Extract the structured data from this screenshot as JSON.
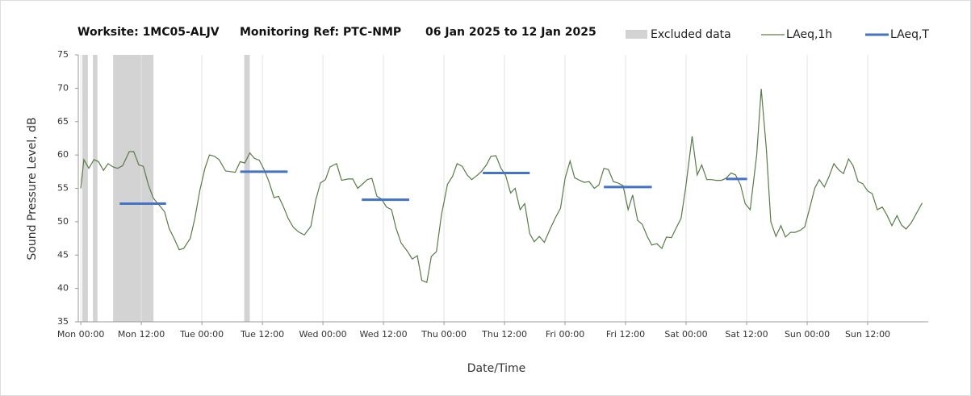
{
  "chart_data": {
    "type": "line",
    "title": [
      "Worksite: 1MC05-ALJV",
      "Monitoring Ref: PTC-NMP",
      "06 Jan 2025 to 12 Jan 2025"
    ],
    "x_label": "Date/Time",
    "y_label": "Sound Pressure Level, dB",
    "xlim": [
      -0.5,
      168
    ],
    "ylim": [
      35,
      75
    ],
    "yticks": [
      35,
      40,
      45,
      50,
      55,
      60,
      65,
      70,
      75
    ],
    "xticks": [
      {
        "value": 0,
        "label": "Mon 00:00"
      },
      {
        "value": 12,
        "label": "Mon 12:00"
      },
      {
        "value": 24,
        "label": "Tue 00:00"
      },
      {
        "value": 36,
        "label": "Tue 12:00"
      },
      {
        "value": 48,
        "label": "Wed 00:00"
      },
      {
        "value": 60,
        "label": "Wed 12:00"
      },
      {
        "value": 72,
        "label": "Thu 00:00"
      },
      {
        "value": 84,
        "label": "Thu 12:00"
      },
      {
        "value": 96,
        "label": "Fri 00:00"
      },
      {
        "value": 108,
        "label": "Fri 12:00"
      },
      {
        "value": 120,
        "label": "Sat 00:00"
      },
      {
        "value": 132,
        "label": "Sat 12:00"
      },
      {
        "value": 144,
        "label": "Sun 00:00"
      },
      {
        "value": 156,
        "label": "Sun 12:00"
      }
    ],
    "grid": "x",
    "excluded": {
      "name": "Excluded data",
      "color": "#d3d3d3",
      "spans": [
        [
          0.3,
          1.4
        ],
        [
          2.4,
          3.3
        ],
        [
          6.4,
          14.4
        ],
        [
          32.4,
          33.5
        ]
      ]
    },
    "series": [
      {
        "name": "LAeq,1h",
        "color": "#5a7a4a",
        "x": [
          0,
          0.6,
          1.6,
          2.6,
          3.5,
          4.5,
          5.4,
          6.4,
          7.3,
          8.3,
          9.6,
          10.5,
          11.5,
          12.4,
          13.4,
          14.4,
          15.3,
          16.6,
          17.5,
          18.5,
          19.5,
          20.4,
          21.7,
          22.6,
          23.6,
          24.6,
          25.5,
          26.5,
          27.4,
          28.7,
          29.7,
          30.6,
          31.6,
          32.5,
          33.5,
          34.4,
          35.4,
          36.4,
          37.3,
          38.3,
          39.2,
          40.2,
          41.1,
          42.1,
          43.1,
          44.3,
          45.6,
          46.6,
          47.5,
          48.5,
          49.4,
          50.7,
          51.7,
          53,
          53.9,
          54.9,
          55.8,
          56.8,
          57.7,
          58.7,
          59.6,
          60.6,
          61.6,
          62.5,
          63.5,
          64.8,
          65.7,
          66.7,
          67.6,
          68.6,
          69.5,
          70.5,
          71.5,
          72.7,
          73.7,
          74.6,
          75.6,
          76.6,
          77.5,
          78.5,
          79.4,
          80.4,
          81.3,
          82.3,
          83.3,
          84.2,
          85.2,
          86.1,
          87.1,
          88,
          89,
          89.9,
          90.9,
          91.9,
          93.1,
          94.1,
          95.1,
          96,
          97,
          97.9,
          98.9,
          99.8,
          100.8,
          101.8,
          102.7,
          103.7,
          104.6,
          105.6,
          106.5,
          107.5,
          108.5,
          109.4,
          110.4,
          111.3,
          112.3,
          113.2,
          114.2,
          115.2,
          116.1,
          117.1,
          118,
          119,
          119.9,
          121.2,
          122.2,
          123.1,
          124.1,
          125,
          126,
          127,
          127.9,
          128.9,
          129.8,
          130.8,
          131.7,
          132.7,
          134,
          134.9,
          135.9,
          136.8,
          137.8,
          138.8,
          139.7,
          140.7,
          141.6,
          142.6,
          143.5,
          144.5,
          145.5,
          146.4,
          147.4,
          148.3,
          149.3,
          150.2,
          151.2,
          152.2,
          153.1,
          154.1,
          155,
          156,
          156.9,
          157.9,
          158.9,
          159.8,
          160.8,
          161.8,
          162.7,
          163.6,
          164.6,
          166.8
        ],
        "values": [
          55,
          59.3,
          58,
          59.3,
          59,
          57.7,
          58.7,
          58.2,
          58,
          58.4,
          60.5,
          60.5,
          58.5,
          58.3,
          55.5,
          53.5,
          52.7,
          51.5,
          49,
          47.5,
          45.8,
          46,
          47.5,
          50.5,
          54.7,
          58,
          60,
          59.8,
          59.3,
          57.6,
          57.5,
          57.4,
          59,
          58.8,
          60.3,
          59.5,
          59.2,
          57.7,
          56,
          53.6,
          53.8,
          52.2,
          50.5,
          49.2,
          48.5,
          48,
          49.3,
          53.3,
          55.8,
          56.3,
          58.2,
          58.7,
          56.2,
          56.4,
          56.4,
          55,
          55.6,
          56.3,
          56.5,
          53.8,
          53.4,
          52.2,
          51.8,
          49,
          46.8,
          45.5,
          44.4,
          44.9,
          41.2,
          40.9,
          44.8,
          45.5,
          51,
          55.6,
          56.8,
          58.7,
          58.3,
          57,
          56.3,
          56.9,
          57.5,
          58.5,
          59.8,
          59.9,
          58,
          57,
          54.3,
          55,
          51.8,
          52.7,
          48.2,
          47,
          47.8,
          46.9,
          49,
          50.6,
          52,
          56.5,
          59.1,
          56.6,
          56.2,
          55.9,
          56,
          55,
          55.5,
          58,
          57.8,
          56,
          55.8,
          55.4,
          51.8,
          54,
          50.2,
          49.6,
          47.8,
          46.5,
          46.7,
          46,
          47.7,
          47.6,
          49,
          50.5,
          55,
          62.8,
          57,
          58.5,
          56.3,
          56.3,
          56.2,
          56.2,
          56.5,
          57.3,
          57,
          55.5,
          52.7,
          51.8,
          60,
          69.9,
          61,
          50,
          47.8,
          49.4,
          47.7,
          48.4,
          48.4,
          48.7,
          49.2,
          52,
          55,
          56.3,
          55.2,
          56.7,
          58.7,
          57.8,
          57.2,
          59.4,
          58.4,
          56,
          55.7,
          54.6,
          54.2,
          51.8,
          52.2,
          51,
          49.4,
          50.9,
          49.5,
          48.9,
          49.8,
          52.8
        ]
      },
      {
        "name": "LAeq,T",
        "color": "#4472c4",
        "segments": [
          {
            "x": [
              7.7,
              16.9
            ],
            "value": 52.7
          },
          {
            "x": [
              31.6,
              41
            ],
            "value": 57.5
          },
          {
            "x": [
              55.7,
              65.1
            ],
            "value": 53.3
          },
          {
            "x": [
              79.7,
              89
            ],
            "value": 57.3
          },
          {
            "x": [
              103.7,
              113.2
            ],
            "value": 55.2
          },
          {
            "x": [
              127.9,
              132.1
            ],
            "value": 56.4
          }
        ]
      }
    ]
  }
}
